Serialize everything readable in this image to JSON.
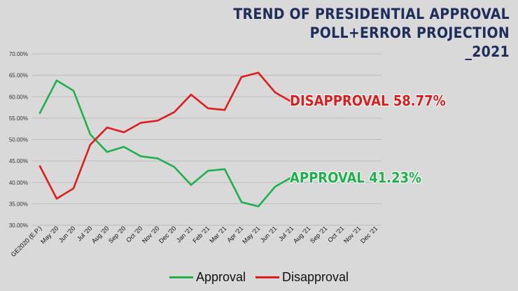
{
  "colors": {
    "approval": "#1eb04b",
    "disapproval": "#e01b1b",
    "title": "#1f2d5a",
    "grid": "#bcbcbc",
    "background": "#d9d9d9"
  },
  "title_lines": [
    "TREND OF PRESIDENTIAL APPROVAL",
    "POLL+ERROR PROJECTION",
    "_2021"
  ],
  "annotations": {
    "disapproval": "DISAPPROVAL 58.77%",
    "approval": "APPROVAL 41.23%"
  },
  "legend": {
    "approval": "Approval",
    "disapproval": "Disapproval"
  },
  "chart_data": {
    "type": "line",
    "title": "TREND OF PRESIDENTIAL APPROVAL POLL+ERROR PROJECTION _2021",
    "xlabel": "",
    "ylabel": "",
    "ylim": [
      0.3,
      0.7
    ],
    "yticks": [
      "30.00%",
      "35.00%",
      "40.00%",
      "45.00%",
      "50.00%",
      "55.00%",
      "60.00%",
      "65.00%",
      "70.00%"
    ],
    "grid": true,
    "legend_position": "bottom",
    "categories": [
      "GE2020 (E.P.)",
      "May '20",
      "Jun '20",
      "Jul '20",
      "Aug '20",
      "Sep '20",
      "Oct '20",
      "Nov '20",
      "Dec '20",
      "Jan '21",
      "Feb '21",
      "Mar '21",
      "Apr '21",
      "May '21",
      "Jun '21",
      "Jul '21",
      "Aug '21",
      "Sep '21",
      "Oct '21",
      "Nov '21",
      "Dec '21"
    ],
    "series": [
      {
        "name": "Approval",
        "values": [
          0.562,
          0.638,
          0.614,
          0.512,
          0.471,
          0.483,
          0.461,
          0.456,
          0.436,
          0.394,
          0.427,
          0.431,
          0.354,
          0.344,
          0.39,
          0.4123,
          null,
          null,
          null,
          null,
          null
        ]
      },
      {
        "name": "Disapproval",
        "values": [
          0.438,
          0.362,
          0.386,
          0.488,
          0.528,
          0.517,
          0.539,
          0.544,
          0.564,
          0.605,
          0.573,
          0.569,
          0.646,
          0.656,
          0.61,
          0.5877,
          null,
          null,
          null,
          null,
          null
        ]
      }
    ]
  }
}
